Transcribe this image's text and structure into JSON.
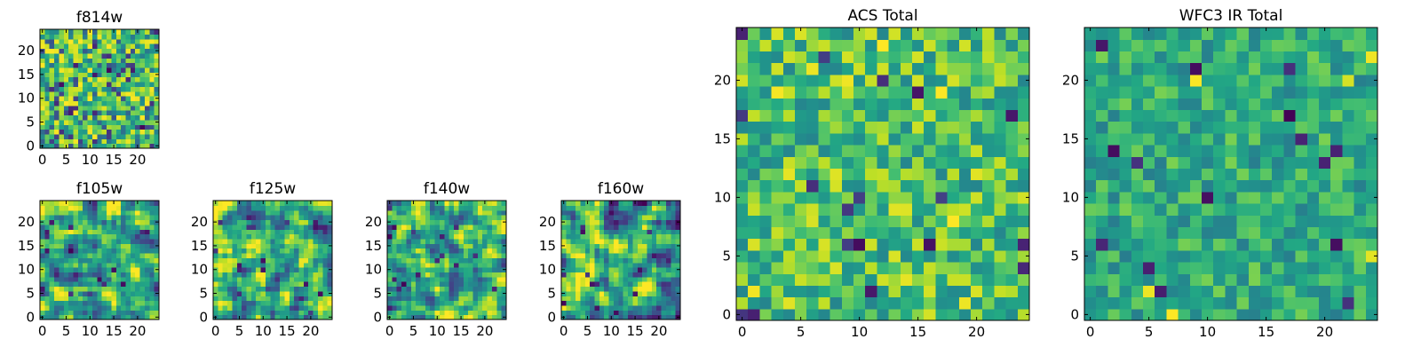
{
  "chart_data": {
    "type": "heatmap",
    "colormap": "viridis",
    "grid_size": 25,
    "value_range": [
      0,
      1
    ],
    "panels": [
      {
        "id": "f814w",
        "title": "f814w",
        "xticks": [
          "0",
          "5",
          "10",
          "15",
          "20"
        ],
        "yticks": [
          "0",
          "5",
          "10",
          "15",
          "20"
        ],
        "tick_values": [
          0,
          5,
          10,
          15,
          20
        ],
        "pixels": 25,
        "seed": 11,
        "style": "noise"
      },
      {
        "id": "f105w",
        "title": "f105w",
        "xticks": [
          "0",
          "5",
          "10",
          "15",
          "20"
        ],
        "yticks": [
          "0",
          "5",
          "10",
          "15",
          "20"
        ],
        "tick_values": [
          0,
          5,
          10,
          15,
          20
        ],
        "pixels": 25,
        "seed": 23,
        "style": "smooth"
      },
      {
        "id": "f125w",
        "title": "f125w",
        "xticks": [
          "0",
          "5",
          "10",
          "15",
          "20"
        ],
        "yticks": [
          "0",
          "5",
          "10",
          "15",
          "20"
        ],
        "tick_values": [
          0,
          5,
          10,
          15,
          20
        ],
        "pixels": 25,
        "seed": 37,
        "style": "smooth"
      },
      {
        "id": "f140w",
        "title": "f140w",
        "xticks": [
          "0",
          "5",
          "10",
          "15",
          "20"
        ],
        "yticks": [
          "0",
          "5",
          "10",
          "15",
          "20"
        ],
        "tick_values": [
          0,
          5,
          10,
          15,
          20
        ],
        "pixels": 25,
        "seed": 41,
        "style": "smooth"
      },
      {
        "id": "f160w",
        "title": "f160w",
        "xticks": [
          "0",
          "5",
          "10",
          "15",
          "20"
        ],
        "yticks": [
          "0",
          "5",
          "10",
          "15",
          "20"
        ],
        "tick_values": [
          0,
          5,
          10,
          15,
          20
        ],
        "pixels": 25,
        "seed": 53,
        "style": "smooth"
      },
      {
        "id": "acs",
        "title": "ACS Total",
        "xticks": [
          "0",
          "5",
          "10",
          "15",
          "20"
        ],
        "yticks": [
          "0",
          "5",
          "10",
          "15",
          "20"
        ],
        "tick_values": [
          0,
          5,
          10,
          15,
          20
        ],
        "pixels": 25,
        "seed": 67,
        "style": "blocky"
      },
      {
        "id": "wfc3",
        "title": "WFC3 IR Total",
        "xticks": [
          "0",
          "5",
          "10",
          "15",
          "20"
        ],
        "yticks": [
          "0",
          "5",
          "10",
          "15",
          "20"
        ],
        "tick_values": [
          0,
          5,
          10,
          15,
          20
        ],
        "pixels": 25,
        "seed": 79,
        "style": "blocky_dark"
      }
    ]
  }
}
